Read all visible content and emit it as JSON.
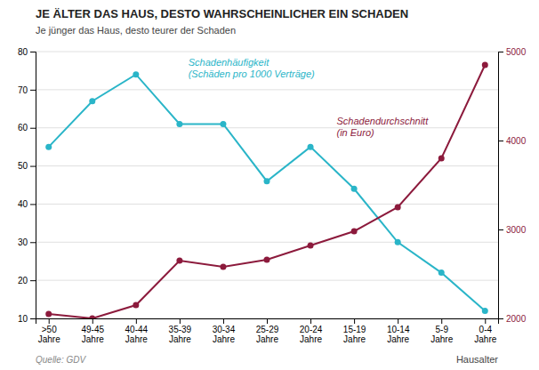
{
  "chart_data": {
    "type": "line",
    "title": "JE ÄLTER DAS HAUS, DESTO WAHRSCHEINLICHER EIN SCHADEN",
    "subtitle": "Je jünger das Haus, desto teurer der Schaden",
    "source": "Quelle: GDV",
    "xlabel": "Hausalter",
    "categories": [
      ">50\nJahre",
      "49-45\nJahre",
      "40-44\nJahre",
      "35-39\nJahre",
      "30-34\nJahre",
      "25-29\nJahre",
      "20-24\nJahre",
      "15-19\nJahre",
      "10-14\nJahre",
      "5-9\nJahre",
      "0-4\nJahre"
    ],
    "series": [
      {
        "name": "Schadenhäufigkeit\n(Schäden pro 1000 Verträge)",
        "color": "#2ab5c8",
        "values": [
          55,
          67,
          74,
          61,
          61,
          46,
          55,
          44,
          30,
          22,
          12
        ]
      },
      {
        "name": "Schadendurchschnitt\n(in Euro)",
        "color": "#8c1a3c",
        "axis": "y2",
        "values": [
          2050,
          2000,
          2150,
          2650,
          2580,
          2660,
          2820,
          2980,
          3250,
          3800,
          4850
        ]
      }
    ],
    "ylim": [
      10,
      80
    ],
    "yticks": [
      10,
      20,
      30,
      40,
      50,
      60,
      70,
      80
    ],
    "y2lim": [
      2000,
      5000
    ],
    "y2ticks": [
      2000,
      3000,
      4000,
      5000
    ],
    "grid": true,
    "marker": "circle"
  }
}
